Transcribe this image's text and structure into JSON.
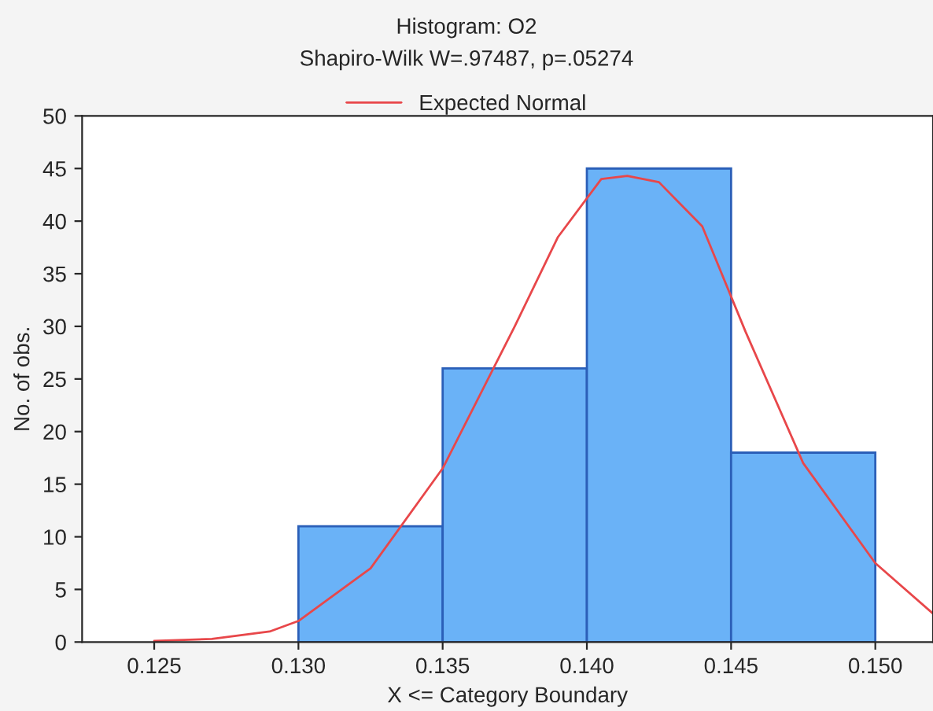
{
  "chart_data": {
    "type": "histogram",
    "title": "Histogram: O2",
    "subtitle": "Shapiro-Wilk W=.97487, p=.05274",
    "xlabel": "X <= Category Boundary",
    "ylabel": "No. of obs.",
    "bins": [
      0.13,
      0.135,
      0.14,
      0.145,
      0.15
    ],
    "values": [
      11,
      26,
      45,
      18
    ],
    "color": "#6ab2f7",
    "series": [
      {
        "type": "line",
        "name": "Expected Normal",
        "color": "#e8474a",
        "x": [
          0.125,
          0.127,
          0.129,
          0.13,
          0.1325,
          0.135,
          0.1375,
          0.139,
          0.1405,
          0.1414,
          0.1425,
          0.144,
          0.1455,
          0.1475,
          0.15,
          0.152
        ],
        "values": [
          0.1,
          0.3,
          1.0,
          2.0,
          7,
          16.5,
          30,
          38.5,
          44,
          44.3,
          43.7,
          39.5,
          29.5,
          17,
          7.5,
          2.7
        ]
      }
    ],
    "xlim": [
      0.1225,
      0.152
    ],
    "xticks": [
      0.125,
      {
        "value": 0.13,
        "label": "0.130"
      },
      0.135,
      {
        "value": 0.14,
        "label": "0.140"
      },
      0.145,
      {
        "value": 0.15,
        "label": "0.150"
      }
    ],
    "ylim": [
      0,
      50
    ],
    "yticks": [
      0,
      5,
      10,
      15,
      20,
      25,
      30,
      35,
      40,
      45,
      50
    ],
    "grid": false,
    "legend": "top"
  }
}
